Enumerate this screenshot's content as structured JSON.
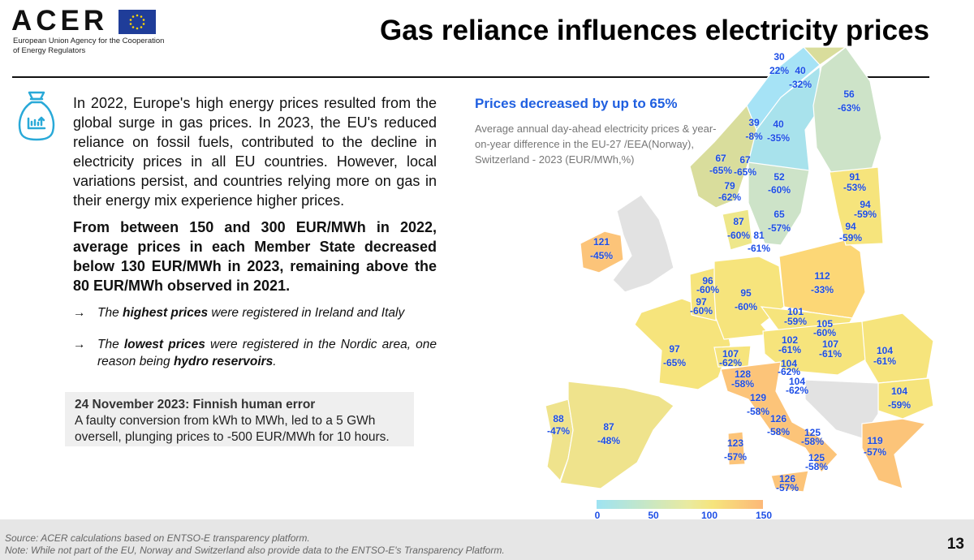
{
  "header": {
    "logo": "ACER",
    "logo_subtitle": "European Union Agency for the Cooperation of Energy Regulators",
    "title": "Gas reliance influences electricity prices"
  },
  "left": {
    "paragraph1": "In 2022, Europe's high energy prices resulted from the global surge in gas prices. In 2023, the EU's reduced reliance on fossil fuels, contributed to the decline in electricity prices in all EU countries. However, local variations persist, and countries relying more on gas in their energy mix experience higher prices.",
    "paragraph2": "From between 150 and 300 EUR/MWh in 2022, average prices in each Member State decreased below 130 EUR/MWh in 2023, remaining above the 80 EUR/MWh observed in 2021.",
    "bullets": [
      {
        "arrow": "→",
        "pre": "The ",
        "bold": "highest prices",
        "post": " were registered in Ireland and Italy"
      },
      {
        "arrow": "→",
        "pre": "The ",
        "bold": "lowest prices",
        "post": " were registered in the Nordic area, one reason being ",
        "bold2": "hydro reservoirs",
        "end": "."
      }
    ],
    "note": {
      "title": "24 November 2023: Finnish human error",
      "body": " A faulty conversion from kWh to MWh, led to a 5 GWh oversell, plunging prices to -500 EUR/MWh for 10 hours."
    }
  },
  "map": {
    "heading": "Prices decreased by up to 65%",
    "description": "Average annual day-ahead electricity prices & year-on-year difference in the EU-27 /EEA(Norway), Switzerland - 2023 (EUR/MWh,%)",
    "colors": {
      "low": "#9ee3f2",
      "nordic": "#a8e2ec",
      "finland": "#cde3c8",
      "mid": "#f6e47c",
      "high": "#fcc479",
      "no_data": "#e2e2e2",
      "label": "#1e4fe6"
    },
    "legend_ticks": [
      "0",
      "50",
      "100",
      "150"
    ],
    "labels": [
      {
        "v": "30",
        "d": "22%"
      },
      {
        "v": "40",
        "d": "-32%"
      },
      {
        "v": "56",
        "d": "-63%"
      },
      {
        "v": "39",
        "d": "-8%"
      },
      {
        "v": "40",
        "d": "-35%"
      },
      {
        "v": "67",
        "d": "-65%"
      },
      {
        "v": "67",
        "d": "-65%"
      },
      {
        "v": "79",
        "d": "-62%"
      },
      {
        "v": "52",
        "d": "-60%"
      },
      {
        "v": "65",
        "d": "-57%"
      },
      {
        "v": "91",
        "d": "-53%"
      },
      {
        "v": "94",
        "d": "-59%"
      },
      {
        "v": "94",
        "d": "-59%"
      },
      {
        "v": "87",
        "d": "-60%"
      },
      {
        "v": "81",
        "d": "-61%"
      },
      {
        "v": "121",
        "d": "-45%"
      },
      {
        "v": "96",
        "d": "-60%"
      },
      {
        "v": "97",
        "d": "-60%"
      },
      {
        "v": "95",
        "d": "-60%"
      },
      {
        "v": "112",
        "d": "-33%"
      },
      {
        "v": "101",
        "d": "-59%"
      },
      {
        "v": "105",
        "d": "-60%"
      },
      {
        "v": "102",
        "d": "-61%"
      },
      {
        "v": "107",
        "d": "-61%"
      },
      {
        "v": "104",
        "d": "-61%"
      },
      {
        "v": "97",
        "d": "-65%"
      },
      {
        "v": "107",
        "d": "-62%"
      },
      {
        "v": "104",
        "d": "-62%"
      },
      {
        "v": "104",
        "d": "-62%"
      },
      {
        "v": "128",
        "d": "-58%"
      },
      {
        "v": "104",
        "d": "-59%"
      },
      {
        "v": "129",
        "d": "-58%"
      },
      {
        "v": "126",
        "d": "-58%"
      },
      {
        "v": "125",
        "d": "-58%"
      },
      {
        "v": "125",
        "d": "-58%"
      },
      {
        "v": "126",
        "d": "-57%"
      },
      {
        "v": "123",
        "d": "-57%"
      },
      {
        "v": "119",
        "d": "-57%"
      },
      {
        "v": "88",
        "d": "-47%"
      },
      {
        "v": "87",
        "d": "-48%"
      }
    ]
  },
  "footer": {
    "source": "Source: ACER calculations based on ENTSO-E transparency platform.",
    "note": "Note: While not part of the EU, Norway and Switzerland also provide data to the ENTSO-E's Transparency Platform.",
    "page": "13"
  }
}
